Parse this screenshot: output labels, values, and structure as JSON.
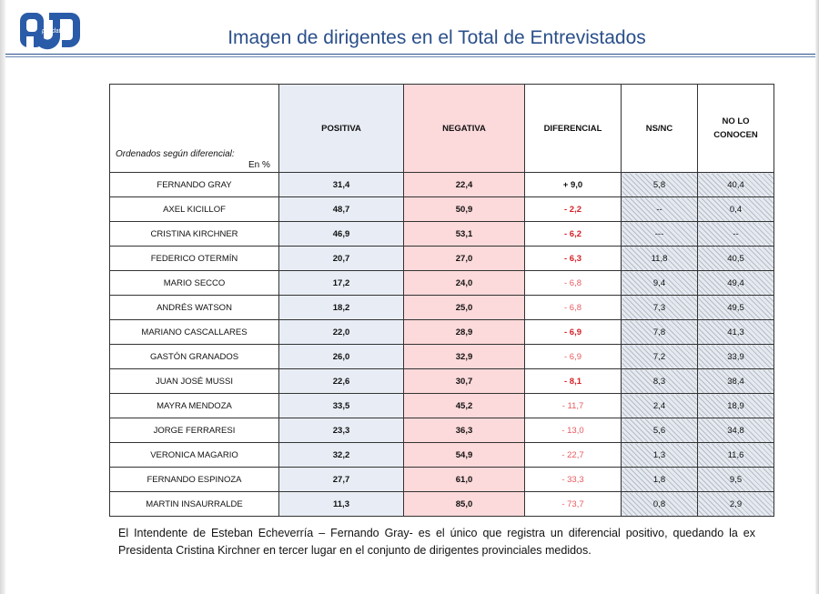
{
  "header": {
    "title": "Imagen de dirigentes en el Total de Entrevistados",
    "logo_text": "polldata"
  },
  "table": {
    "corner_note": "Ordenados según diferencial:",
    "corner_unit": "En %",
    "columns": [
      "POSITIVA",
      "NEGATIVA",
      "DIFERENCIAL",
      "NS/NC",
      "NO LO CONOCEN"
    ],
    "rows": [
      {
        "name": "FERNANDO GRAY",
        "positiva": "31,4",
        "negativa": "22,4",
        "diferencial": "+ 9,0",
        "nsnc": "5,8",
        "no_conocen": "40,4",
        "dif_style": "pos-val"
      },
      {
        "name": "AXEL KICILLOF",
        "positiva": "48,7",
        "negativa": "50,9",
        "diferencial": "- 2,2",
        "nsnc": "--",
        "no_conocen": "0,4",
        "dif_style": "red"
      },
      {
        "name": "CRISTINA KIRCHNER",
        "positiva": "46,9",
        "negativa": "53,1",
        "diferencial": "- 6,2",
        "nsnc": "---",
        "no_conocen": "--",
        "dif_style": "red"
      },
      {
        "name": "FEDERICO OTERMÍN",
        "positiva": "20,7",
        "negativa": "27,0",
        "diferencial": "- 6,3",
        "nsnc": "11,8",
        "no_conocen": "40,5",
        "dif_style": "red"
      },
      {
        "name": "MARIO SECCO",
        "positiva": "17,2",
        "negativa": "24,0",
        "diferencial": "- 6,8",
        "nsnc": "9,4",
        "no_conocen": "49,4",
        "dif_style": "light"
      },
      {
        "name": "ANDRÉS WATSON",
        "positiva": "18,2",
        "negativa": "25,0",
        "diferencial": "- 6,8",
        "nsnc": "7,3",
        "no_conocen": "49,5",
        "dif_style": "light"
      },
      {
        "name": "MARIANO CASCALLARES",
        "positiva": "22,0",
        "negativa": "28,9",
        "diferencial": "- 6,9",
        "nsnc": "7,8",
        "no_conocen": "41,3",
        "dif_style": "red"
      },
      {
        "name": "GASTÓN GRANADOS",
        "positiva": "26,0",
        "negativa": "32,9",
        "diferencial": "- 6,9",
        "nsnc": "7,2",
        "no_conocen": "33,9",
        "dif_style": "light"
      },
      {
        "name": "JUAN JOSÉ MUSSI",
        "positiva": "22,6",
        "negativa": "30,7",
        "diferencial": "- 8,1",
        "nsnc": "8,3",
        "no_conocen": "38,4",
        "dif_style": "red"
      },
      {
        "name": "MAYRA MENDOZA",
        "positiva": "33,5",
        "negativa": "45,2",
        "diferencial": "- 11,7",
        "nsnc": "2,4",
        "no_conocen": "18,9",
        "dif_style": "light"
      },
      {
        "name": "JORGE FERRARESI",
        "positiva": "23,3",
        "negativa": "36,3",
        "diferencial": "- 13,0",
        "nsnc": "5,6",
        "no_conocen": "34,8",
        "dif_style": "light"
      },
      {
        "name": "VERONICA MAGARIO",
        "positiva": "32,2",
        "negativa": "54,9",
        "diferencial": "- 22,7",
        "nsnc": "1,3",
        "no_conocen": "11,6",
        "dif_style": "light"
      },
      {
        "name": "FERNANDO ESPINOZA",
        "positiva": "27,7",
        "negativa": "61,0",
        "diferencial": "- 33,3",
        "nsnc": "1,8",
        "no_conocen": "9,5",
        "dif_style": "light"
      },
      {
        "name": "MARTIN INSAURRALDE",
        "positiva": "11,3",
        "negativa": "85,0",
        "diferencial": "- 73,7",
        "nsnc": "0,8",
        "no_conocen": "2,9",
        "dif_style": "light"
      }
    ]
  },
  "footer": {
    "text": "El Intendente de Esteban Echeverría – Fernando Gray- es el único que registra un diferencial positivo, quedando la ex Presidenta Cristina Kirchner en tercer lugar en el conjunto de dirigentes provinciales medidos."
  },
  "colors": {
    "title_blue": "#2a4f8a",
    "positiva_bg": "#e8edf5",
    "negativa_bg": "#fcd9da",
    "negative_red": "#d61f26",
    "negative_light": "#e85a5f"
  }
}
